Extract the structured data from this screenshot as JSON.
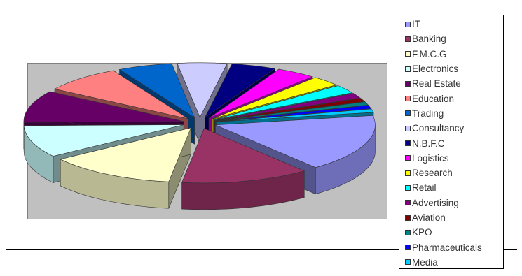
{
  "chart_data": {
    "type": "pie",
    "three_d": true,
    "exploded": true,
    "legend_position": "right",
    "title": "",
    "series": [
      {
        "name": "IT",
        "value": 17.0,
        "color": "#9999ff"
      },
      {
        "name": "Banking",
        "value": 13.0,
        "color": "#993366"
      },
      {
        "name": "F.M.C.G",
        "value": 13.0,
        "color": "#ffffcc"
      },
      {
        "name": "Electronics",
        "value": 9.5,
        "color": "#ccffff"
      },
      {
        "name": "Real Estate",
        "value": 9.5,
        "color": "#660066"
      },
      {
        "name": "Education",
        "value": 8.0,
        "color": "#ff8080"
      },
      {
        "name": "Trading",
        "value": 5.5,
        "color": "#0066cc"
      },
      {
        "name": "Consultancy",
        "value": 5.0,
        "color": "#ccccff"
      },
      {
        "name": "N.B.F.C",
        "value": 4.5,
        "color": "#000080"
      },
      {
        "name": "Logistics",
        "value": 4.0,
        "color": "#ff00ff"
      },
      {
        "name": "Research",
        "value": 3.0,
        "color": "#ffff00"
      },
      {
        "name": "Retail",
        "value": 2.5,
        "color": "#00ffff"
      },
      {
        "name": "Advertising",
        "value": 1.5,
        "color": "#800080"
      },
      {
        "name": "Aviation",
        "value": 1.0,
        "color": "#800000"
      },
      {
        "name": "KPO",
        "value": 1.0,
        "color": "#008080"
      },
      {
        "name": "Pharmaceuticals",
        "value": 1.0,
        "color": "#0000ff"
      },
      {
        "name": "Media",
        "value": 1.0,
        "color": "#00ccff"
      }
    ]
  }
}
